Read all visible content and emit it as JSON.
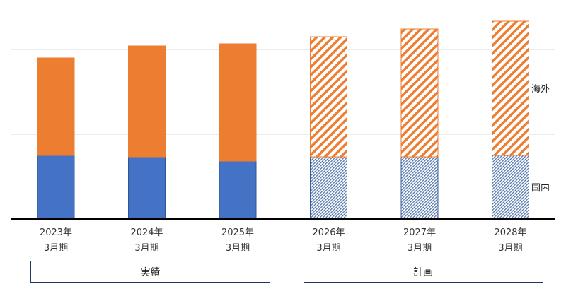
{
  "chart_data": {
    "type": "bar",
    "stacked": true,
    "categories": [
      [
        "2023年",
        "3月期"
      ],
      [
        "2024年",
        "3月期"
      ],
      [
        "2025年",
        "3月期"
      ],
      [
        "2026年",
        "3月期"
      ],
      [
        "2027年",
        "3月期"
      ],
      [
        "2028年",
        "3月期"
      ]
    ],
    "series": [
      {
        "name": "国内",
        "values": [
          90,
          88,
          82,
          88,
          88,
          90
        ],
        "color": "#4472c4"
      },
      {
        "name": "海外",
        "values": [
          138,
          157,
          166,
          170,
          181,
          190
        ],
        "color": "#ed7d31"
      }
    ],
    "hatched_from_index": 3,
    "ylim": [
      0,
      310
    ],
    "gridlines": [
      120,
      240
    ],
    "legend": "right, labels beside last bar",
    "groups": [
      {
        "label": "実績",
        "from": 0,
        "to": 2
      },
      {
        "label": "計画",
        "from": 3,
        "to": 5
      }
    ]
  }
}
